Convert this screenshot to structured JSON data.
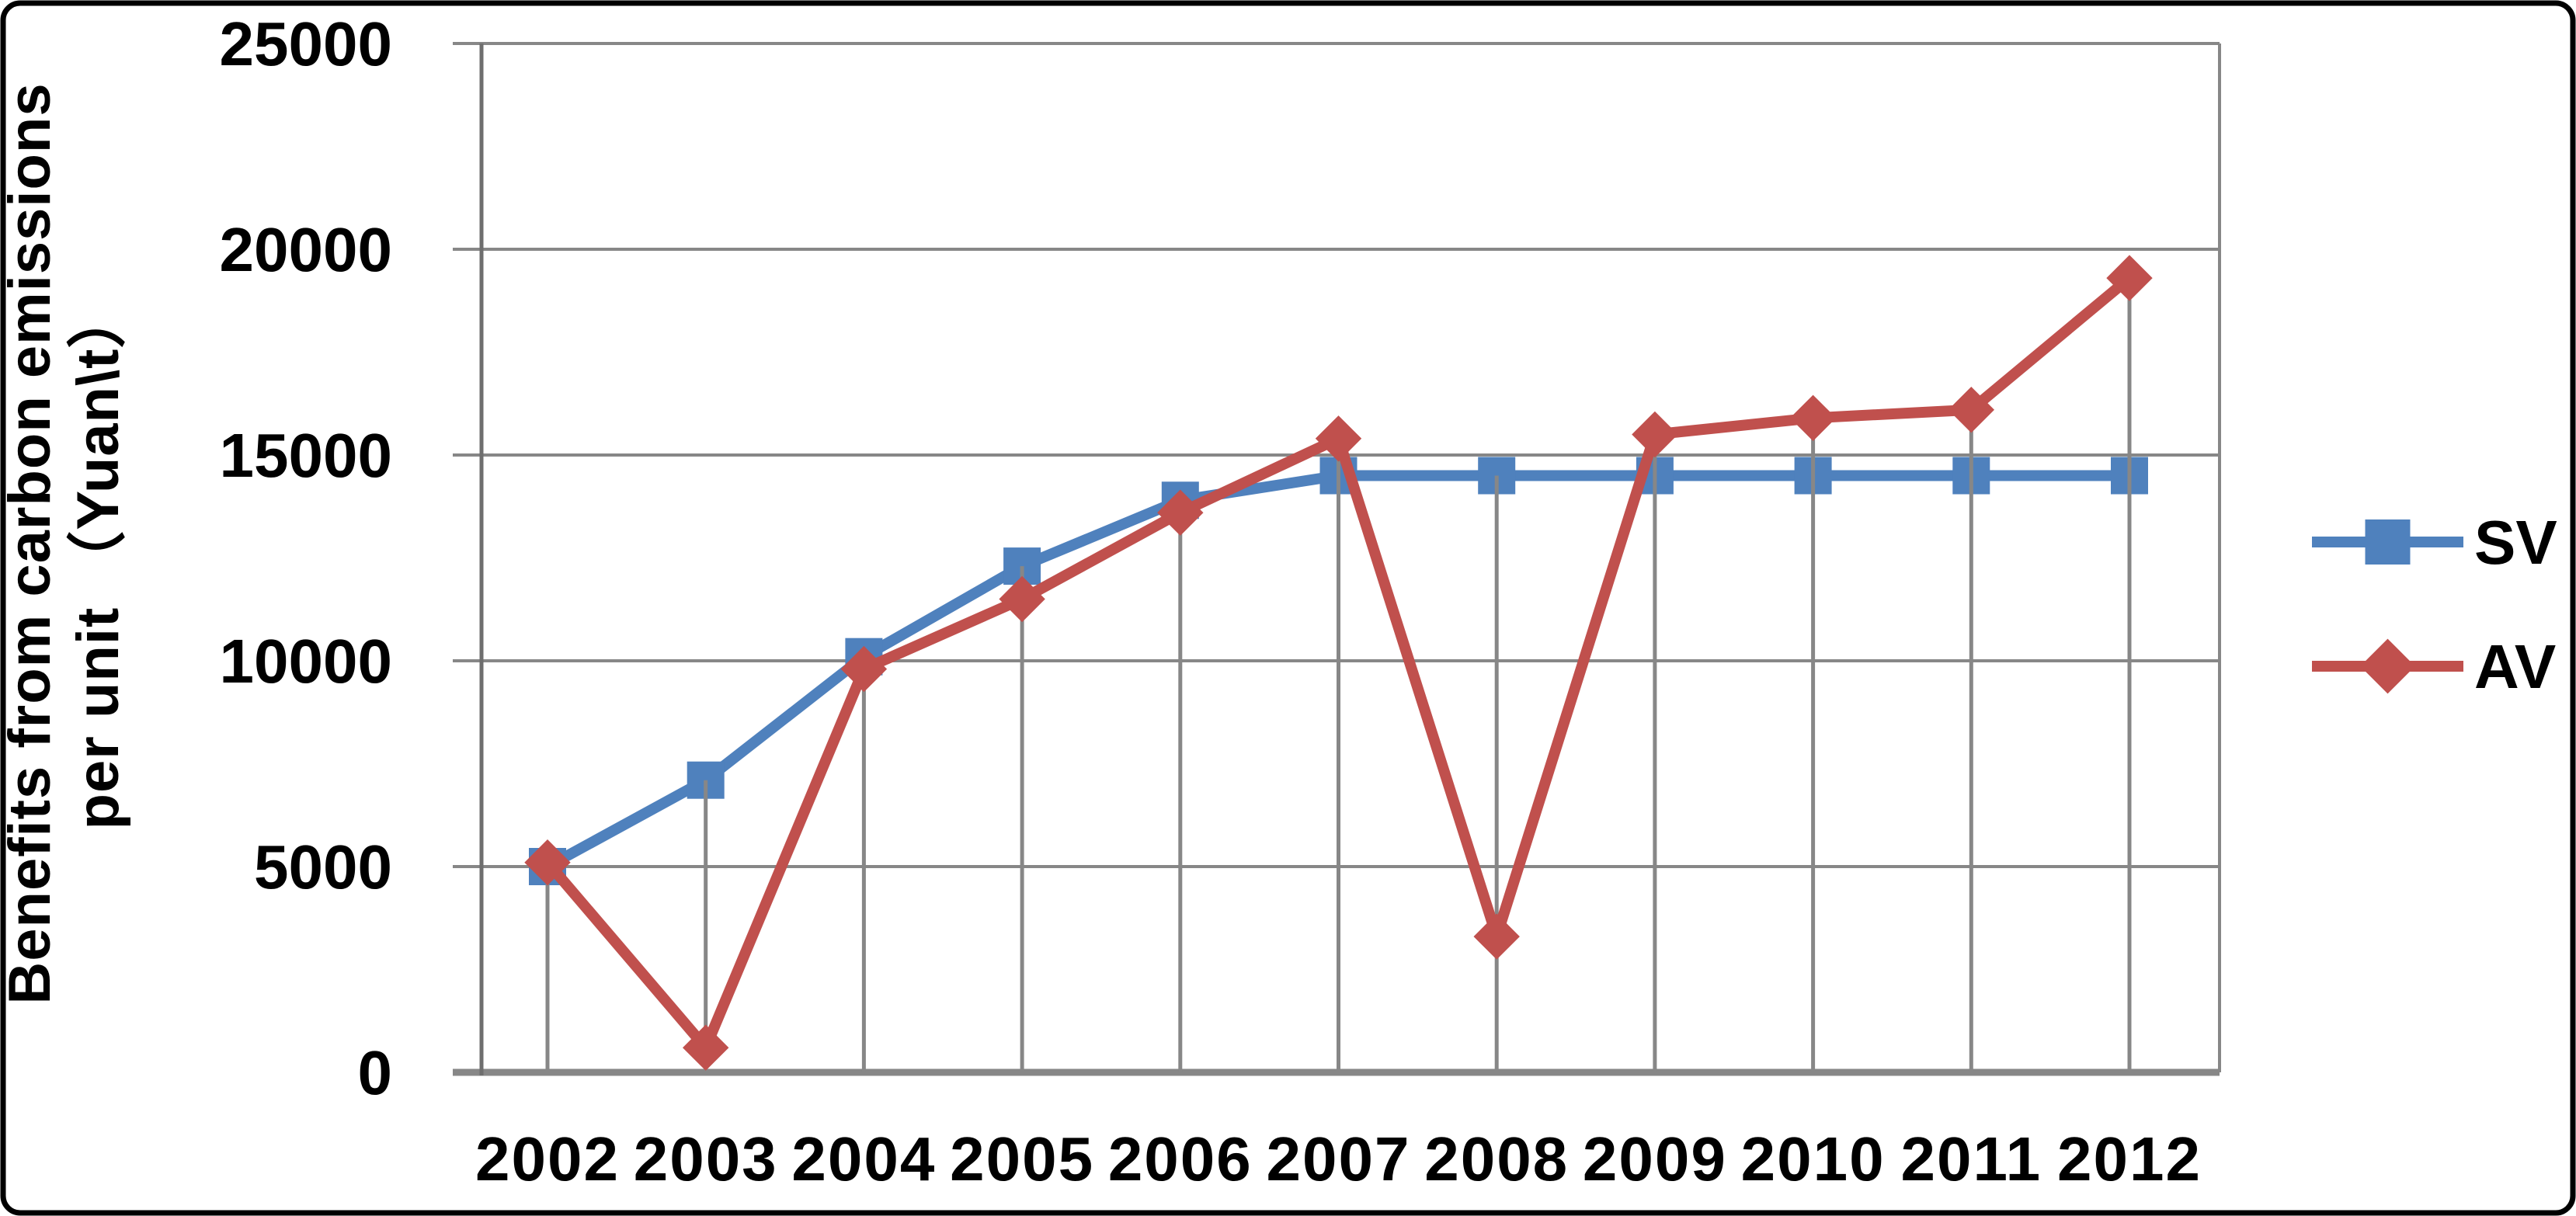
{
  "chart_data": {
    "type": "line",
    "title": "",
    "ylabel_line1": "Benefits from carbon emissions",
    "ylabel_line2": "per unit （Yuan\\t）",
    "categories": [
      "2002",
      "2003",
      "2004",
      "2005",
      "2006",
      "2007",
      "2008",
      "2009",
      "2010",
      "2011",
      "2012"
    ],
    "yticks": [
      "0",
      "5000",
      "10000",
      "15000",
      "20000",
      "25000"
    ],
    "ylim": [
      0,
      25000
    ],
    "ytick_step": 5000,
    "grid": true,
    "drop_lines": true,
    "legend_position": "right",
    "series": [
      {
        "name": "SV",
        "color": "#4F81BD",
        "marker": "square",
        "values": [
          5000,
          7100,
          10100,
          12300,
          13900,
          14500,
          14500,
          14500,
          14500,
          14500,
          14500
        ]
      },
      {
        "name": "AV",
        "color": "#C0504D",
        "marker": "diamond",
        "values": [
          5100,
          600,
          9800,
          11500,
          13600,
          15400,
          3300,
          15500,
          15900,
          16100,
          19300
        ]
      }
    ],
    "colors": {
      "gridline": "#878787",
      "axis": "#6E6E6E",
      "text": "#000000",
      "background": "#FFFFFF",
      "frame_border": "#000000"
    }
  }
}
